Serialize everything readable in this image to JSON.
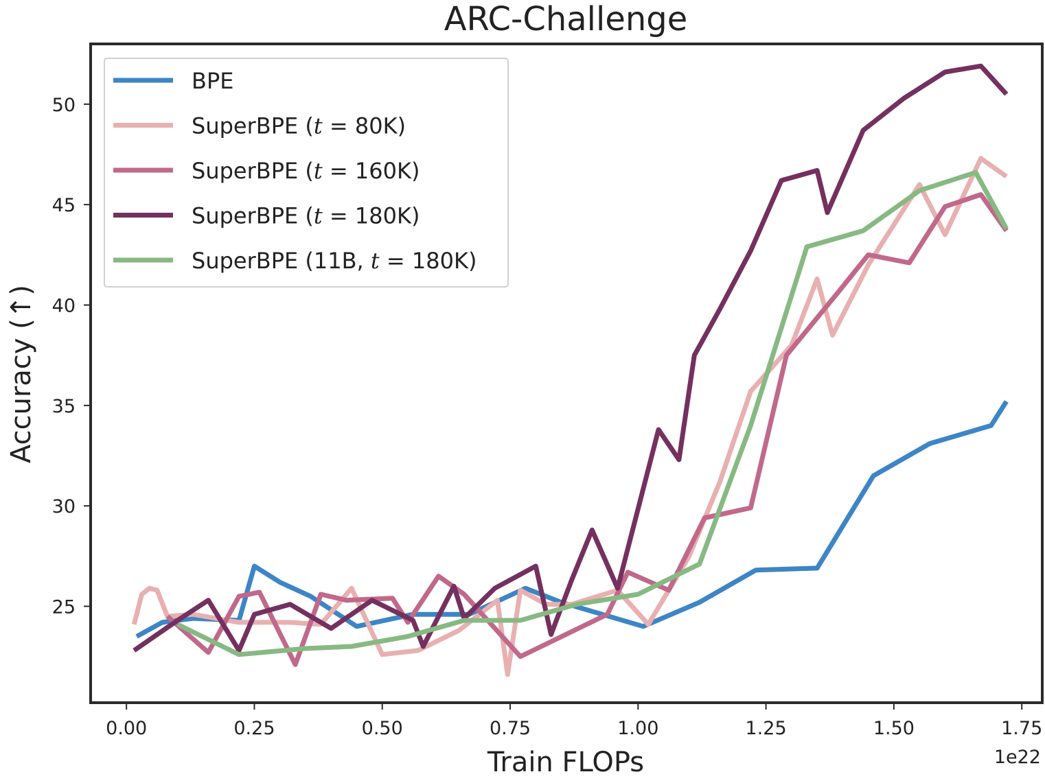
{
  "chart_data": {
    "type": "line",
    "title": "ARC-Challenge",
    "xlabel": "Train FLOPs",
    "ylabel": "Accuracy (↑)",
    "x_offset_label": "1e22",
    "xlim": [
      -0.07,
      1.79
    ],
    "ylim": [
      20.2,
      53.0
    ],
    "xticks": [
      0.0,
      0.25,
      0.5,
      0.75,
      1.0,
      1.25,
      1.5,
      1.75
    ],
    "xtick_labels": [
      "0.00",
      "0.25",
      "0.50",
      "0.75",
      "1.00",
      "1.25",
      "1.50",
      "1.75"
    ],
    "yticks": [
      25,
      30,
      35,
      40,
      45,
      50
    ],
    "ytick_labels": [
      "25",
      "30",
      "35",
      "40",
      "45",
      "50"
    ],
    "grid": false,
    "legend_position": "top-left",
    "series": [
      {
        "name": "BPE",
        "legend": {
          "pre": "BPE",
          "ital": "",
          "post": ""
        },
        "color": "#3d85c6",
        "x": [
          0.02,
          0.07,
          0.13,
          0.22,
          0.25,
          0.3,
          0.36,
          0.45,
          0.56,
          0.67,
          0.78,
          0.85,
          1.01,
          1.12,
          1.23,
          1.35,
          1.46,
          1.57,
          1.69,
          1.72
        ],
        "y": [
          23.5,
          24.2,
          24.4,
          24.3,
          27.0,
          26.2,
          25.5,
          24.0,
          24.6,
          24.6,
          25.9,
          25.2,
          24.0,
          25.2,
          26.8,
          26.9,
          31.5,
          33.1,
          34.0,
          35.2
        ]
      },
      {
        "name": "SuperBPE (t = 80K)",
        "legend": {
          "pre": "SuperBPE (",
          "ital": "t",
          "post": " = 80K)"
        },
        "color": "#e8b0b0",
        "x": [
          0.015,
          0.03,
          0.045,
          0.06,
          0.08,
          0.13,
          0.22,
          0.32,
          0.38,
          0.44,
          0.5,
          0.57,
          0.65,
          0.725,
          0.745,
          0.77,
          0.82,
          0.87,
          0.96,
          1.02,
          1.1,
          1.16,
          1.22,
          1.3,
          1.35,
          1.38,
          1.45,
          1.55,
          1.6,
          1.67,
          1.72
        ],
        "y": [
          24.1,
          25.6,
          25.9,
          25.8,
          24.5,
          24.6,
          24.2,
          24.2,
          24.1,
          25.9,
          22.6,
          22.8,
          23.8,
          25.3,
          21.6,
          25.8,
          25.1,
          25.1,
          25.8,
          24.1,
          27.5,
          31.2,
          35.7,
          38.0,
          41.3,
          38.5,
          42.0,
          46.0,
          43.5,
          47.3,
          46.4
        ]
      },
      {
        "name": "SuperBPE (t = 160K)",
        "legend": {
          "pre": "SuperBPE (",
          "ital": "t",
          "post": " = 160K)"
        },
        "color": "#c0698a",
        "x": [
          0.08,
          0.16,
          0.22,
          0.26,
          0.33,
          0.38,
          0.43,
          0.52,
          0.55,
          0.61,
          0.66,
          0.77,
          0.94,
          0.98,
          1.06,
          1.13,
          1.22,
          1.29,
          1.39,
          1.45,
          1.53,
          1.6,
          1.67,
          1.72
        ],
        "y": [
          24.5,
          22.7,
          25.5,
          25.7,
          22.1,
          25.6,
          25.3,
          25.4,
          24.2,
          26.5,
          25.6,
          22.5,
          24.6,
          26.7,
          25.8,
          29.4,
          29.9,
          37.5,
          40.6,
          42.5,
          42.1,
          44.9,
          45.5,
          43.7
        ]
      },
      {
        "name": "SuperBPE (t = 180K)",
        "legend": {
          "pre": "SuperBPE (",
          "ital": "t",
          "post": " = 180K)"
        },
        "color": "#74305e",
        "x": [
          0.015,
          0.1,
          0.16,
          0.22,
          0.25,
          0.32,
          0.4,
          0.48,
          0.56,
          0.58,
          0.64,
          0.66,
          0.72,
          0.8,
          0.83,
          0.87,
          0.91,
          0.96,
          1.04,
          1.08,
          1.11,
          1.16,
          1.22,
          1.28,
          1.35,
          1.37,
          1.44,
          1.52,
          1.6,
          1.67,
          1.72
        ],
        "y": [
          22.8,
          24.3,
          25.3,
          22.8,
          24.6,
          25.1,
          23.9,
          25.3,
          24.3,
          23.0,
          26.0,
          24.4,
          25.9,
          27.0,
          23.6,
          26.3,
          28.8,
          25.9,
          33.8,
          32.3,
          37.5,
          39.8,
          42.7,
          46.2,
          46.7,
          44.6,
          48.7,
          50.3,
          51.6,
          51.9,
          50.5
        ]
      },
      {
        "name": "SuperBPE (11B, t = 180K)",
        "legend": {
          "pre": "SuperBPE (11B, ",
          "ital": "t",
          "post": " = 180K)"
        },
        "color": "#87b983",
        "x": [
          0.1,
          0.22,
          0.35,
          0.44,
          0.55,
          0.66,
          0.77,
          0.88,
          1.0,
          1.12,
          1.22,
          1.33,
          1.44,
          1.55,
          1.66,
          1.72
        ],
        "y": [
          24.1,
          22.6,
          22.9,
          23.0,
          23.5,
          24.3,
          24.3,
          25.1,
          25.6,
          27.1,
          34.0,
          42.9,
          43.7,
          45.7,
          46.6,
          43.8
        ]
      }
    ]
  }
}
